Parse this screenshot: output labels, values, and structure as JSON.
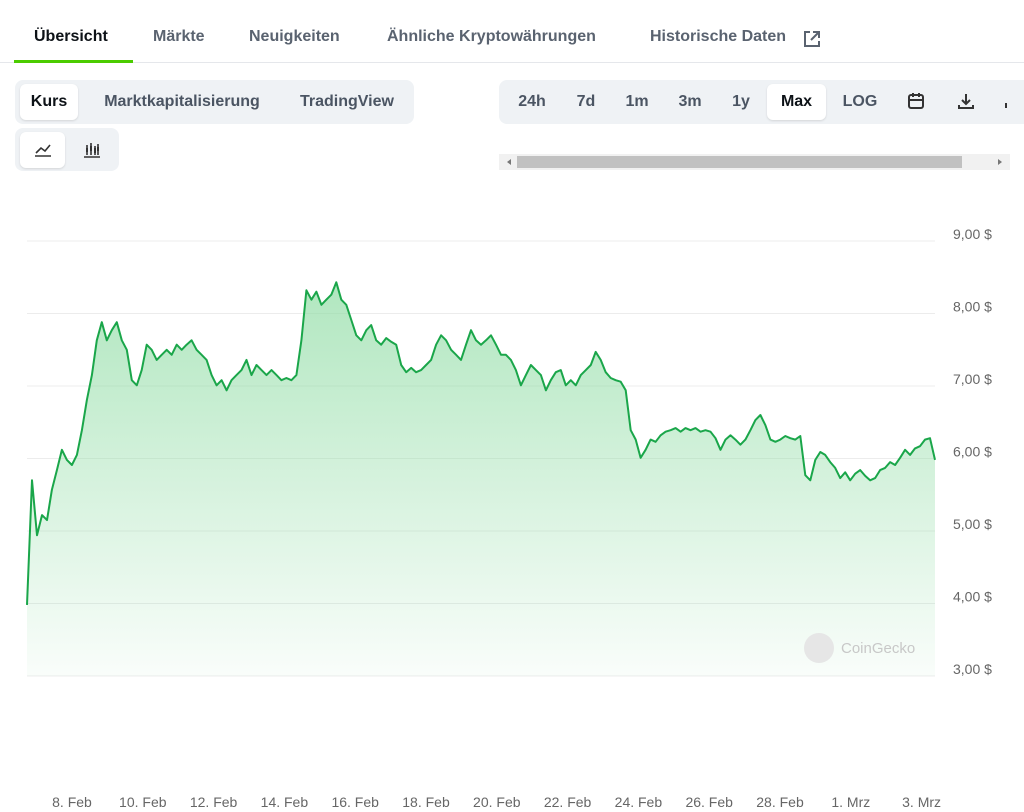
{
  "tabs": [
    "Übersicht",
    "Märkte",
    "Neuigkeiten",
    "Ähnliche Kryptowährungen",
    "Historische Daten"
  ],
  "chart_modes": [
    "Kurs",
    "Marktkapitalisierung",
    "TradingView"
  ],
  "ranges": [
    "24h",
    "7d",
    "1m",
    "3m",
    "1y",
    "Max",
    "LOG"
  ],
  "watermark": "CoinGecko",
  "chart_data": {
    "type": "line",
    "color": "#1aa64a",
    "grid": true,
    "x_labels": [
      "8. Feb",
      "10. Feb",
      "12. Feb",
      "14. Feb",
      "16. Feb",
      "18. Feb",
      "20. Feb",
      "22. Feb",
      "24. Feb",
      "26. Feb",
      "28. Feb",
      "1. Mrz",
      "3. Mrz"
    ],
    "ylim": [
      3,
      9
    ],
    "yticks": [
      {
        "value": 9,
        "label": "9,00 $"
      },
      {
        "value": 8,
        "label": "8,00 $"
      },
      {
        "value": 7,
        "label": "7,00 $"
      },
      {
        "value": 6,
        "label": "6,00 $"
      },
      {
        "value": 5,
        "label": "5,00 $"
      },
      {
        "value": 4,
        "label": "4,00 $"
      },
      {
        "value": 3,
        "label": "3,00 $"
      }
    ],
    "values": [
      3.98,
      5.7,
      4.94,
      5.22,
      5.15,
      5.57,
      5.84,
      6.12,
      5.98,
      5.91,
      6.05,
      6.39,
      6.81,
      7.15,
      7.63,
      7.88,
      7.63,
      7.77,
      7.88,
      7.63,
      7.5,
      7.08,
      7.01,
      7.22,
      7.57,
      7.5,
      7.36,
      7.43,
      7.5,
      7.43,
      7.57,
      7.5,
      7.57,
      7.63,
      7.5,
      7.43,
      7.36,
      7.15,
      7.01,
      7.08,
      6.94,
      7.08,
      7.15,
      7.22,
      7.36,
      7.15,
      7.29,
      7.22,
      7.15,
      7.22,
      7.15,
      7.08,
      7.11,
      7.08,
      7.15,
      7.63,
      8.32,
      8.19,
      8.3,
      8.12,
      8.19,
      8.26,
      8.43,
      8.19,
      8.12,
      7.91,
      7.7,
      7.63,
      7.77,
      7.84,
      7.63,
      7.57,
      7.66,
      7.61,
      7.57,
      7.29,
      7.19,
      7.25,
      7.19,
      7.22,
      7.29,
      7.36,
      7.57,
      7.7,
      7.63,
      7.5,
      7.43,
      7.36,
      7.57,
      7.77,
      7.63,
      7.57,
      7.63,
      7.7,
      7.57,
      7.43,
      7.43,
      7.36,
      7.22,
      7.01,
      7.15,
      7.29,
      7.22,
      7.15,
      6.94,
      7.08,
      7.19,
      7.22,
      7.01,
      7.08,
      7.01,
      7.15,
      7.22,
      7.29,
      7.47,
      7.36,
      7.19,
      7.11,
      7.08,
      7.06,
      6.94,
      6.39,
      6.26,
      6.01,
      6.12,
      6.26,
      6.23,
      6.32,
      6.37,
      6.39,
      6.42,
      6.37,
      6.42,
      6.39,
      6.42,
      6.37,
      6.39,
      6.37,
      6.28,
      6.12,
      6.26,
      6.32,
      6.26,
      6.19,
      6.26,
      6.39,
      6.53,
      6.6,
      6.46,
      6.26,
      6.23,
      6.26,
      6.31,
      6.28,
      6.26,
      6.31,
      5.77,
      5.7,
      5.98,
      6.09,
      6.05,
      5.95,
      5.87,
      5.73,
      5.81,
      5.7,
      5.79,
      5.84,
      5.76,
      5.7,
      5.73,
      5.84,
      5.87,
      5.95,
      5.91,
      6.01,
      6.12,
      6.05,
      6.14,
      6.17,
      6.26,
      6.28,
      5.98
    ]
  }
}
